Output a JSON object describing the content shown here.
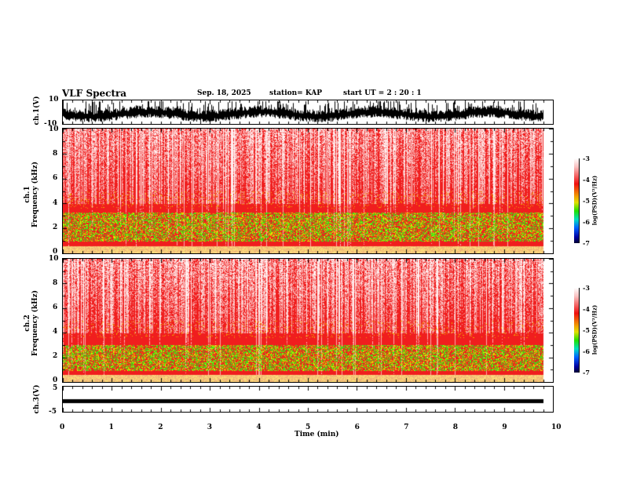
{
  "header": {
    "title": "VLF Spectra",
    "date": "Sep. 18, 2025",
    "station": "station= KAP",
    "start_ut": "start  UT =   2 : 20 : 1"
  },
  "chart_data": [
    {
      "type": "line",
      "name": "ch1 waveform",
      "ylabel": "ch.1(V)",
      "ylim": [
        -10,
        10
      ],
      "yticks": [
        "10",
        "-10"
      ],
      "xlim": [
        0,
        10
      ]
    },
    {
      "type": "heatmap",
      "name": "ch1 spectrogram",
      "ylabel": "ch.1\nFrequency (kHz)",
      "ylabel_top": "ch.1",
      "ylabel_bottom": "Frequency  (kHz)",
      "ylim": [
        0,
        10
      ],
      "yticks": [
        "0",
        "2",
        "4",
        "6",
        "8",
        "10"
      ],
      "xlim": [
        0,
        10
      ],
      "colorbar": {
        "label": "log(PSD)(V²/Hz)",
        "ticks": [
          "-3",
          "-4",
          "-5",
          "-6",
          "-7"
        ],
        "range": [
          -7,
          -3
        ]
      }
    },
    {
      "type": "heatmap",
      "name": "ch2 spectrogram",
      "ylabel_top": "ch.2",
      "ylabel_bottom": "Frequency  (kHz)",
      "ylim": [
        0,
        10
      ],
      "yticks": [
        "0",
        "2",
        "4",
        "6",
        "8",
        "10"
      ],
      "xlim": [
        0,
        10
      ],
      "colorbar": {
        "label": "log(PSD)(V²/Hz)",
        "ticks": [
          "-3",
          "-4",
          "-5",
          "-6",
          "-7"
        ],
        "range": [
          -7,
          -3
        ]
      }
    },
    {
      "type": "line",
      "name": "ch3 waveform",
      "ylabel": "ch.3(V)",
      "ylim": [
        -5,
        5
      ],
      "yticks": [
        "5",
        "-5"
      ],
      "xlim": [
        0,
        10
      ],
      "level": 1
    }
  ],
  "xaxis": {
    "label": "Time  (min)",
    "ticks": [
      "0",
      "1",
      "2",
      "3",
      "4",
      "5",
      "6",
      "7",
      "8",
      "9",
      "10"
    ],
    "data_end": 9.8
  },
  "colors": {
    "trace": "#000000",
    "background_spec": "#f02020"
  }
}
